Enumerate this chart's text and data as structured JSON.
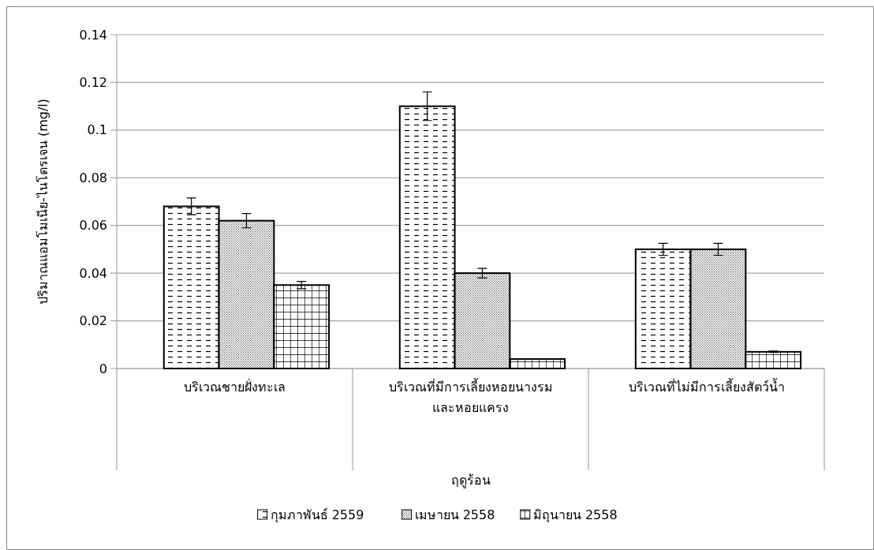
{
  "chart_data": {
    "type": "bar",
    "xlabel": "ฤดูร้อน",
    "ylabel": "ปริมาณแอมโมเนีย-ไนโตรเจน  (mg/l)",
    "categories": [
      "บริเวณชายฝั่งทะเล",
      "บริเวณที่มีการเลี้ยงหอยนางรม และหอยแครง",
      "บริเวณที่ไม่มีการเลี้ยงสัตว์น้ำ"
    ],
    "series": [
      {
        "name": "กุมภาพันธ์ 2559",
        "color": "#000000",
        "values": [
          0.068,
          0.11,
          0.05
        ],
        "errors": [
          0.0035,
          0.006,
          0.0025
        ]
      },
      {
        "name": "เมษายน 2558",
        "color": "#000000",
        "values": [
          0.062,
          0.04,
          0.05
        ],
        "errors": [
          0.003,
          0.002,
          0.0025
        ]
      },
      {
        "name": "มิถุนายน 2558",
        "color": "#000000",
        "values": [
          0.035,
          0.004,
          0.007
        ],
        "errors": [
          0.0015,
          null,
          0.0003
        ]
      }
    ],
    "ylim": [
      0,
      0.14
    ],
    "yticks": [
      0,
      0.02,
      0.04,
      0.06,
      0.08,
      0.1,
      0.12,
      0.14
    ],
    "grid": "y",
    "legend": "bottom"
  }
}
